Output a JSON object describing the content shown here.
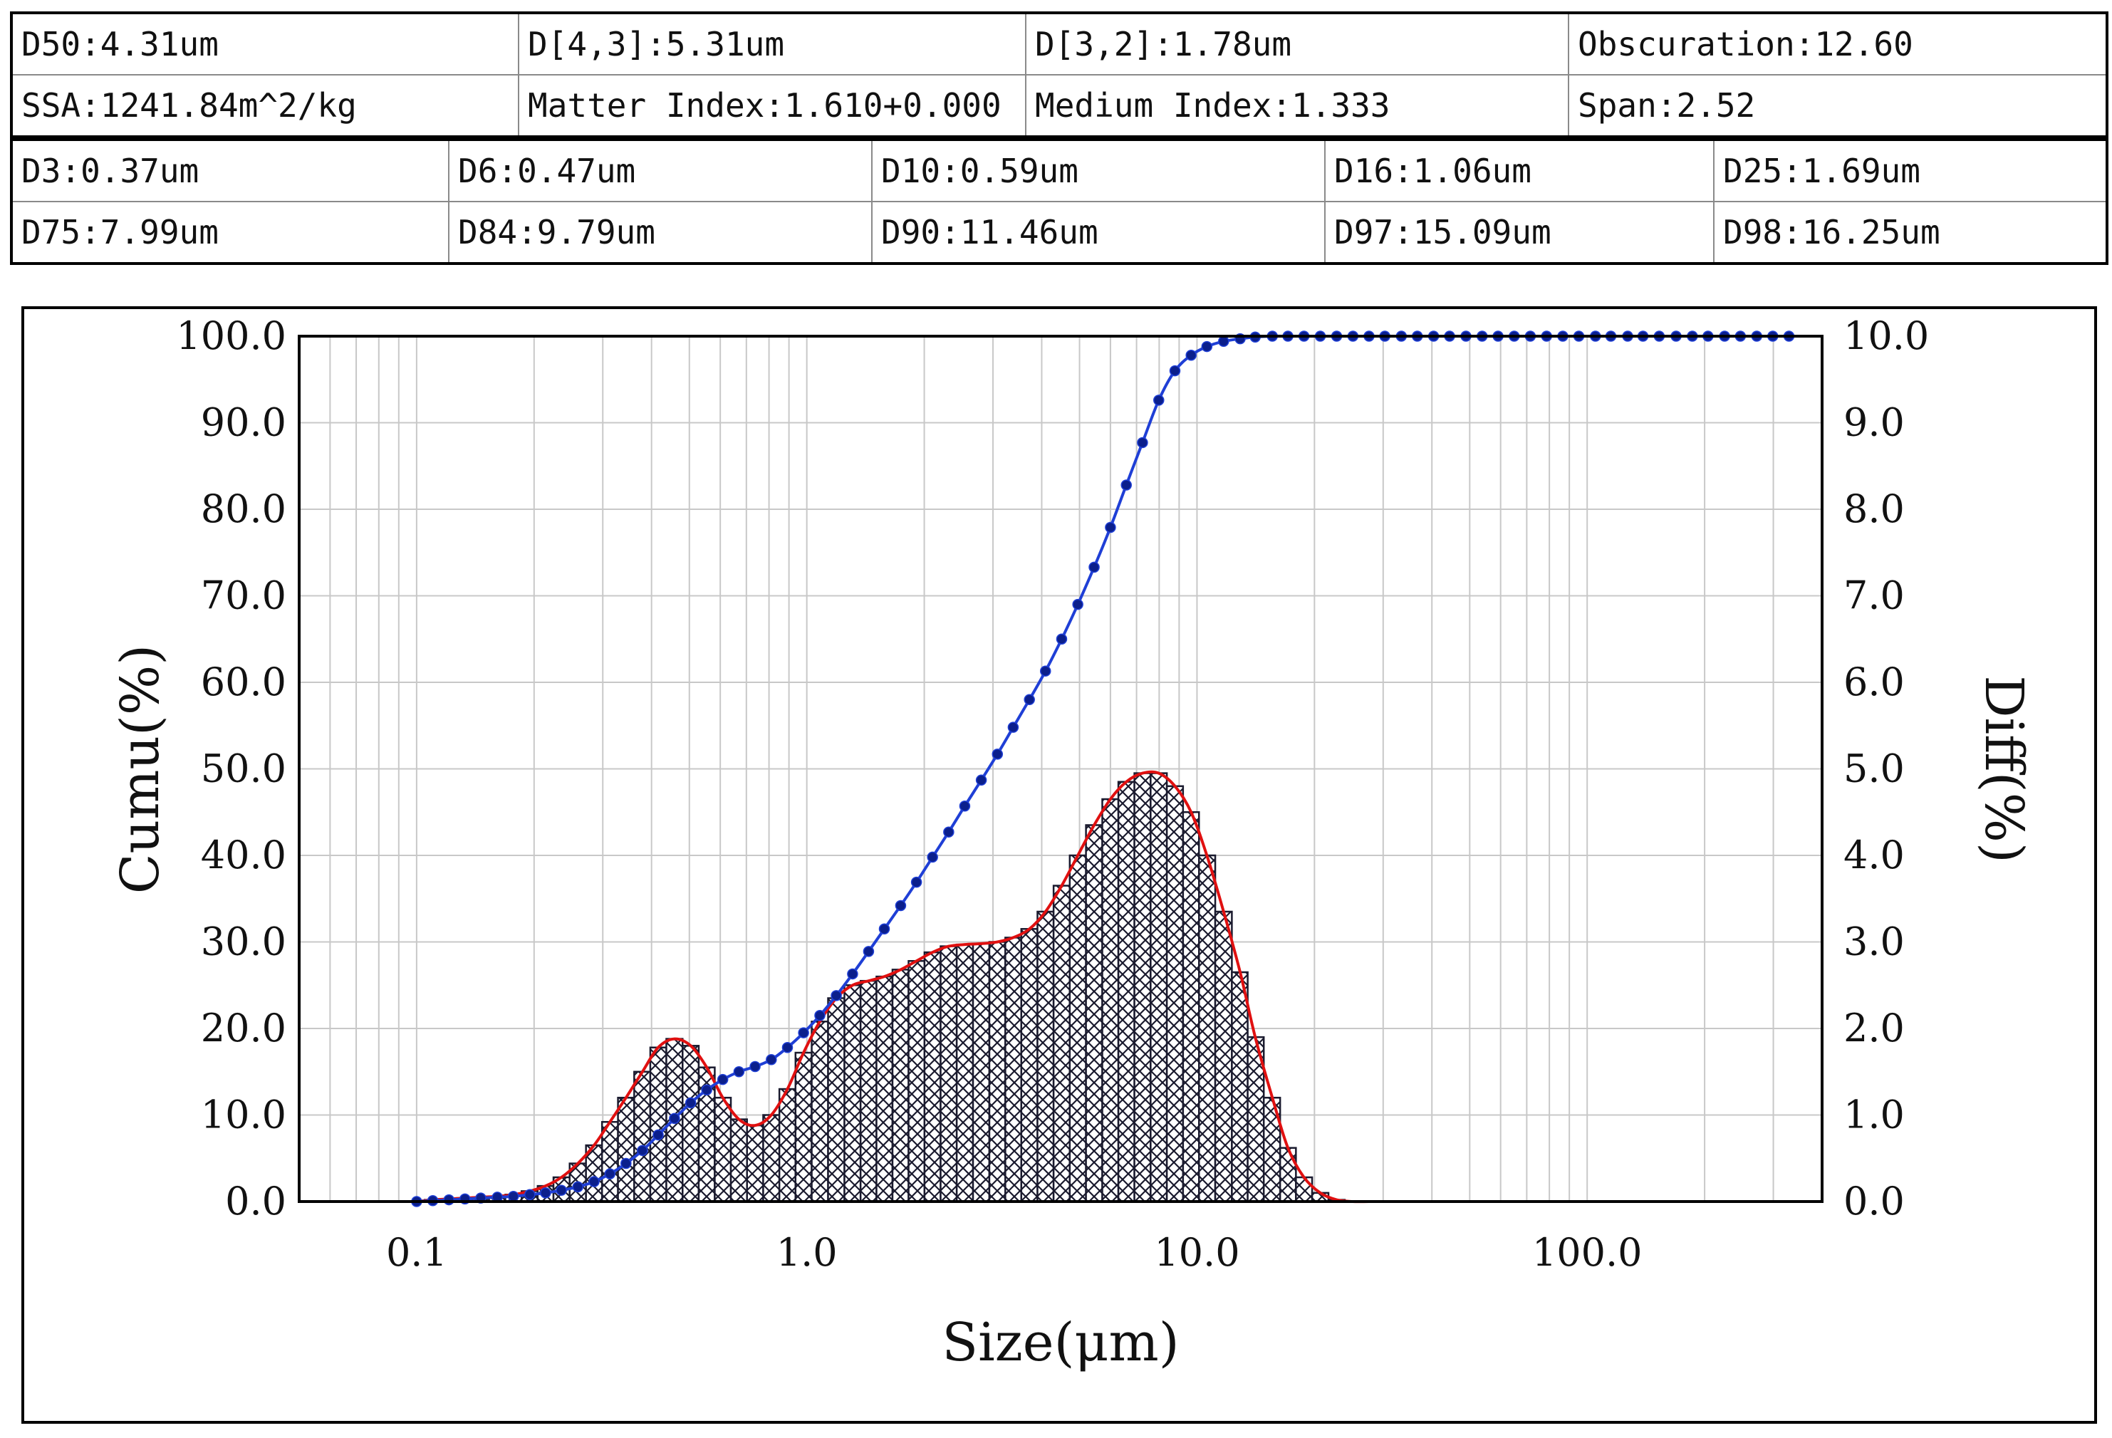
{
  "stats": {
    "row1": [
      "D50:4.31um",
      "D[4,3]:5.31um",
      "D[3,2]:1.78um",
      "Obscuration:12.60"
    ],
    "row2": [
      "SSA:1241.84m^2/kg",
      "Matter Index:1.610+0.000",
      "Medium Index:1.333",
      "Span:2.52"
    ],
    "row3": [
      "D3:0.37um",
      "D6:0.47um",
      "D10:0.59um",
      "D16:1.06um",
      "D25:1.69um"
    ],
    "row4": [
      "D75:7.99um",
      "D84:9.79um",
      "D90:11.46um",
      "D97:15.09um",
      "D98:16.25um"
    ]
  },
  "colors": {
    "cumulative_line": "#1f3fd6",
    "cumulative_marker": "#0b1f8c",
    "differential_line": "#e01010",
    "bars": "#1a1a2e",
    "grid": "#c8c8c8"
  },
  "chart_data": {
    "type": "bar",
    "xlabel": "Size(μm)",
    "ylabel_left": "Cumu(%)",
    "ylabel_right": "Diff(%)",
    "xscale": "log",
    "xlim": [
      0.05,
      400
    ],
    "ylim_left": [
      0,
      100
    ],
    "ylim_right": [
      0,
      10
    ],
    "x_ticks": [
      0.1,
      1.0,
      10.0,
      100.0
    ],
    "x_tick_labels": [
      "0.1",
      "1.0",
      "10.0",
      "100.0"
    ],
    "y_left_ticks": [
      "0.0",
      "10.0",
      "20.0",
      "30.0",
      "40.0",
      "50.0",
      "60.0",
      "70.0",
      "80.0",
      "90.0",
      "100.0"
    ],
    "y_right_ticks": [
      "0.0",
      "1.0",
      "2.0",
      "3.0",
      "4.0",
      "5.0",
      "6.0",
      "7.0",
      "8.0",
      "9.0",
      "10.0"
    ],
    "grid": true,
    "series": [
      {
        "name": "Diff",
        "axis": "right",
        "x": [
          0.1,
          0.11,
          0.121,
          0.133,
          0.146,
          0.161,
          0.177,
          0.195,
          0.214,
          0.235,
          0.259,
          0.285,
          0.313,
          0.344,
          0.379,
          0.416,
          0.458,
          0.504,
          0.554,
          0.609,
          0.67,
          0.737,
          0.811,
          0.892,
          0.981,
          1.08,
          1.19,
          1.31,
          1.44,
          1.58,
          1.74,
          1.91,
          2.1,
          2.31,
          2.54,
          2.8,
          3.08,
          3.38,
          3.72,
          4.09,
          4.5,
          4.95,
          5.45,
          6.0,
          6.59,
          7.25,
          7.98,
          8.78,
          9.66,
          10.6,
          11.7,
          12.9,
          14.1,
          15.6,
          17.1,
          18.8,
          20.7,
          22.8,
          25.1,
          27.6,
          30.3,
          33.4,
          36.7,
          40.4,
          44.4,
          48.9,
          53.8,
          59.1,
          65.0,
          71.5,
          78.7,
          86.6,
          95.2,
          105.0,
          115.0,
          127.0,
          139.0,
          153.0,
          169.0,
          186.0,
          204.0,
          225.0,
          247.0,
          272.0,
          299.0,
          329.0
        ],
        "values": [
          0.0,
          0.02,
          0.03,
          0.04,
          0.05,
          0.06,
          0.08,
          0.12,
          0.18,
          0.28,
          0.44,
          0.65,
          0.92,
          1.2,
          1.5,
          1.78,
          1.88,
          1.8,
          1.55,
          1.2,
          0.95,
          0.88,
          1.0,
          1.3,
          1.72,
          2.08,
          2.35,
          2.5,
          2.55,
          2.6,
          2.68,
          2.78,
          2.88,
          2.95,
          2.97,
          2.98,
          3.0,
          3.05,
          3.15,
          3.35,
          3.65,
          4.0,
          4.35,
          4.65,
          4.85,
          4.95,
          4.95,
          4.8,
          4.5,
          4.0,
          3.35,
          2.65,
          1.9,
          1.2,
          0.62,
          0.28,
          0.1,
          0.02,
          0.0,
          0.0,
          0.0,
          0.0,
          0.0,
          0.0,
          0.0,
          0.0,
          0.0,
          0.0,
          0.0,
          0.0,
          0.0,
          0.0,
          0.0,
          0.0,
          0.0,
          0.0,
          0.0,
          0.0,
          0.0,
          0.0,
          0.0,
          0.0,
          0.0,
          0.0,
          0.0,
          0.0
        ]
      },
      {
        "name": "Cumu",
        "axis": "left",
        "x": [
          0.1,
          0.11,
          0.121,
          0.133,
          0.146,
          0.161,
          0.177,
          0.195,
          0.214,
          0.235,
          0.259,
          0.285,
          0.313,
          0.344,
          0.379,
          0.416,
          0.458,
          0.504,
          0.554,
          0.609,
          0.67,
          0.737,
          0.811,
          0.892,
          0.981,
          1.08,
          1.19,
          1.31,
          1.44,
          1.58,
          1.74,
          1.91,
          2.1,
          2.31,
          2.54,
          2.8,
          3.08,
          3.38,
          3.72,
          4.09,
          4.5,
          4.95,
          5.45,
          6.0,
          6.59,
          7.25,
          7.98,
          8.78,
          9.66,
          10.6,
          11.7,
          12.9,
          14.1,
          15.6,
          17.1,
          18.8,
          20.7,
          22.8,
          25.1,
          27.6,
          30.3,
          33.4,
          36.7,
          40.4,
          44.4,
          48.9,
          53.8,
          59.1,
          65.0,
          71.5,
          78.7,
          86.6,
          95.2,
          105.0,
          115.0,
          127.0,
          139.0,
          153.0,
          169.0,
          186.0,
          204.0,
          225.0,
          247.0,
          272.0,
          299.0,
          329.0
        ],
        "values": [
          0.0,
          0.1,
          0.2,
          0.3,
          0.4,
          0.5,
          0.6,
          0.8,
          1.0,
          1.3,
          1.7,
          2.3,
          3.2,
          4.4,
          5.9,
          7.7,
          9.6,
          11.4,
          12.9,
          14.1,
          15.0,
          15.6,
          16.4,
          17.8,
          19.5,
          21.5,
          23.8,
          26.3,
          28.9,
          31.5,
          34.2,
          36.9,
          39.8,
          42.7,
          45.7,
          48.7,
          51.7,
          54.8,
          58.0,
          61.3,
          65.0,
          69.0,
          73.3,
          77.9,
          82.8,
          87.7,
          92.6,
          96.0,
          97.8,
          98.8,
          99.4,
          99.7,
          99.9,
          100.0,
          100.0,
          100.0,
          100.0,
          100.0,
          100.0,
          100.0,
          100.0,
          100.0,
          100.0,
          100.0,
          100.0,
          100.0,
          100.0,
          100.0,
          100.0,
          100.0,
          100.0,
          100.0,
          100.0,
          100.0,
          100.0,
          100.0,
          100.0,
          100.0,
          100.0,
          100.0,
          100.0,
          100.0,
          100.0,
          100.0,
          100.0,
          100.0
        ]
      }
    ]
  }
}
